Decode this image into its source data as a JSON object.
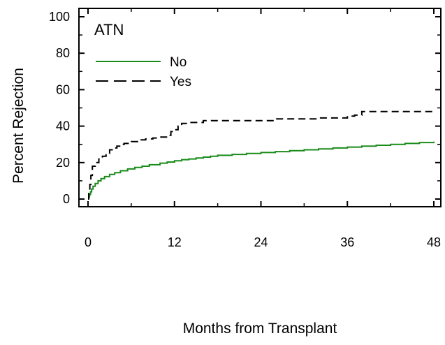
{
  "chart_data": {
    "type": "line",
    "title": "ATN",
    "xlabel": "Months from Transplant",
    "ylabel": "Percent Rejection",
    "xlim": [
      0,
      48
    ],
    "ylim": [
      0,
      100
    ],
    "x_ticks": [
      0,
      12,
      24,
      36,
      48
    ],
    "y_ticks": [
      0,
      20,
      40,
      60,
      80,
      100
    ],
    "grid": false,
    "legend_position": "top-left",
    "series": [
      {
        "name": "No",
        "color": "#1a8c1a",
        "dash": "solid",
        "points": [
          [
            0,
            0
          ],
          [
            0.1,
            1
          ],
          [
            0.2,
            2.5
          ],
          [
            0.35,
            4
          ],
          [
            0.5,
            5.5
          ],
          [
            0.7,
            7
          ],
          [
            1,
            8.5
          ],
          [
            1.4,
            10
          ],
          [
            1.8,
            11.2
          ],
          [
            2.3,
            12.3
          ],
          [
            3,
            13.5
          ],
          [
            3.7,
            14.5
          ],
          [
            4.5,
            15.5
          ],
          [
            5.5,
            16.5
          ],
          [
            6.5,
            17.3
          ],
          [
            7.5,
            18
          ],
          [
            8.5,
            18.8
          ],
          [
            10,
            19.7
          ],
          [
            11,
            20.3
          ],
          [
            12,
            21
          ],
          [
            13,
            21.6
          ],
          [
            14,
            22
          ],
          [
            15,
            22.5
          ],
          [
            16,
            23
          ],
          [
            17,
            23.5
          ],
          [
            18,
            24
          ],
          [
            20,
            24.5
          ],
          [
            22,
            25
          ],
          [
            24,
            25.5
          ],
          [
            26,
            26
          ],
          [
            28,
            26.5
          ],
          [
            30,
            27
          ],
          [
            32,
            27.5
          ],
          [
            34,
            28
          ],
          [
            36,
            28.5
          ],
          [
            38,
            29
          ],
          [
            40,
            29.5
          ],
          [
            42,
            30
          ],
          [
            44,
            30.5
          ],
          [
            46,
            31
          ],
          [
            48,
            31.5
          ]
        ]
      },
      {
        "name": "Yes",
        "color": "#000000",
        "dash": "dashed",
        "points": [
          [
            0,
            0
          ],
          [
            0.1,
            3
          ],
          [
            0.25,
            8
          ],
          [
            0.4,
            13
          ],
          [
            0.6,
            18
          ],
          [
            1,
            20
          ],
          [
            1.5,
            22
          ],
          [
            2,
            23.5
          ],
          [
            2.5,
            25
          ],
          [
            3,
            27
          ],
          [
            3.5,
            28
          ],
          [
            4,
            29
          ],
          [
            4.5,
            30
          ],
          [
            5,
            30.5
          ],
          [
            6,
            31.5
          ],
          [
            7,
            32.5
          ],
          [
            8,
            33
          ],
          [
            9,
            33.5
          ],
          [
            10,
            34
          ],
          [
            11,
            35
          ],
          [
            11.5,
            37
          ],
          [
            12,
            38
          ],
          [
            12.5,
            40
          ],
          [
            13,
            41.5
          ],
          [
            14,
            42
          ],
          [
            15,
            42
          ],
          [
            16,
            43
          ],
          [
            18,
            43
          ],
          [
            20,
            43
          ],
          [
            22,
            43
          ],
          [
            24,
            43
          ],
          [
            25,
            43
          ],
          [
            26,
            44
          ],
          [
            28,
            44
          ],
          [
            30,
            44
          ],
          [
            32,
            44.5
          ],
          [
            34,
            44.5
          ],
          [
            35,
            44.5
          ],
          [
            36,
            45.5
          ],
          [
            37,
            46
          ],
          [
            38,
            48
          ],
          [
            40,
            48
          ],
          [
            42,
            48
          ],
          [
            44,
            48
          ],
          [
            46,
            48
          ],
          [
            48,
            48
          ]
        ]
      }
    ]
  }
}
